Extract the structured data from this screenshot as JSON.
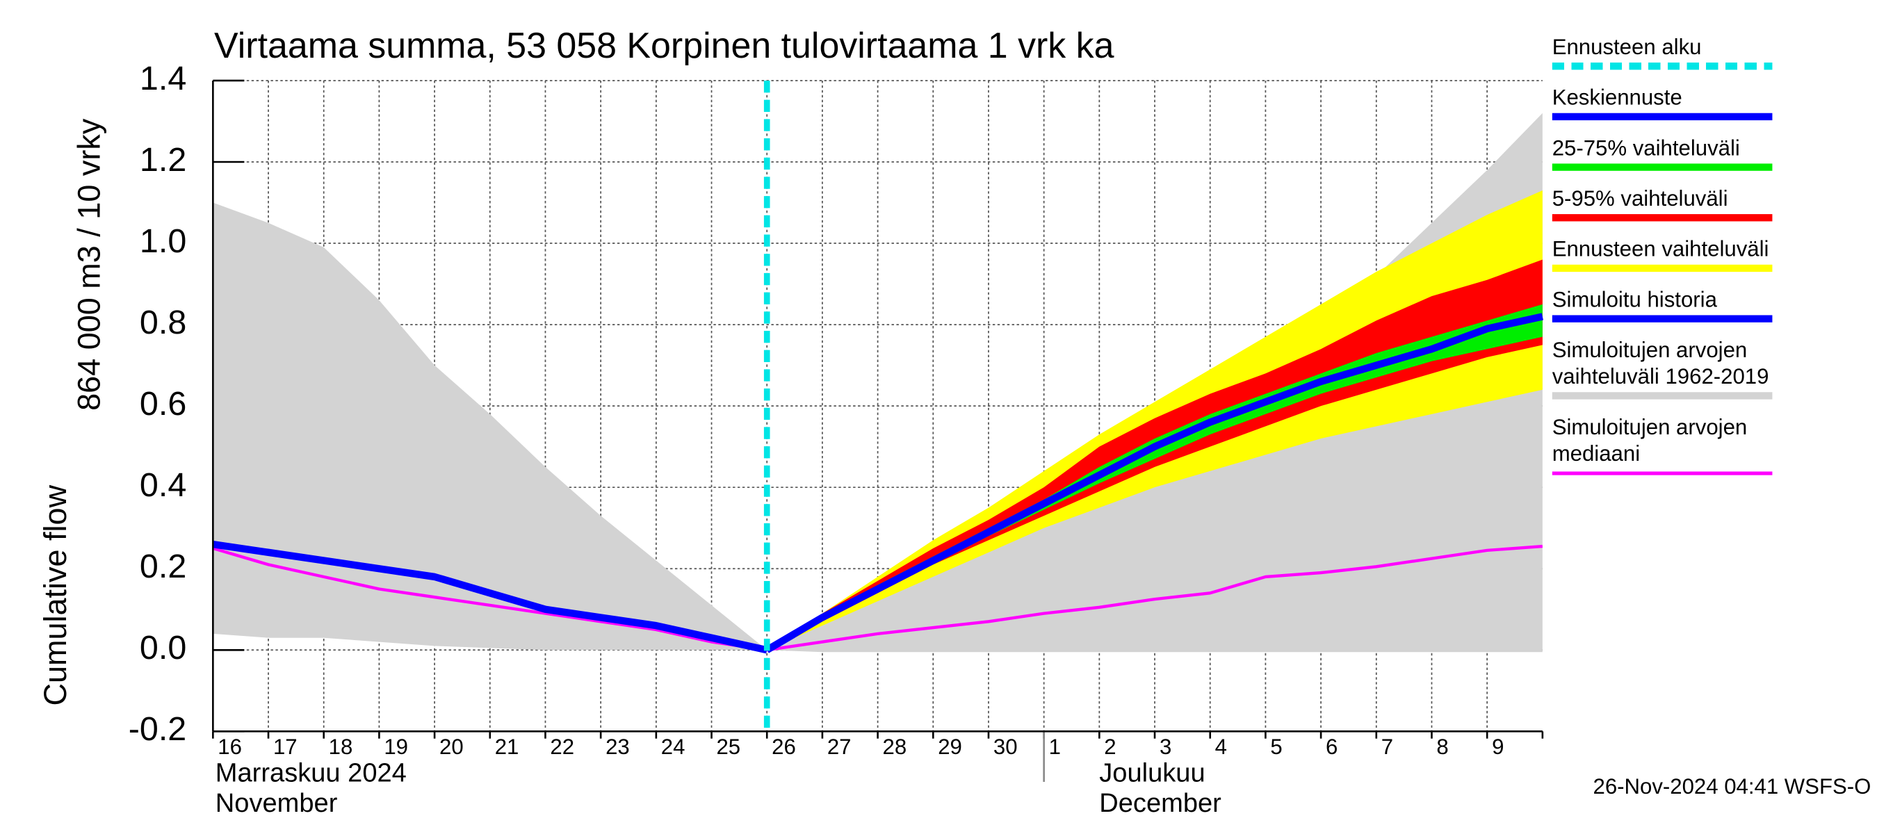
{
  "chart_data": {
    "type": "band-line",
    "title": "Virtaama summa, 53 058 Korpinen tulovirtaama 1 vrk ka",
    "y_label_lines": [
      "Cumulative flow",
      "864 000 m3 / 10 vrky"
    ],
    "categories": [
      "16",
      "17",
      "18",
      "19",
      "20",
      "21",
      "22",
      "23",
      "24",
      "25",
      "26",
      "27",
      "28",
      "29",
      "30",
      "1",
      "2",
      "3",
      "4",
      "5",
      "6",
      "7",
      "8",
      "9",
      null
    ],
    "months": [
      {
        "start": 0,
        "lines": [
          "Marraskuu 2024",
          "November"
        ]
      },
      {
        "start": 15,
        "lines": [
          "Joulukuu",
          "December"
        ]
      }
    ],
    "ylim": [
      -0.2,
      1.4
    ],
    "yticks": [
      -0.2,
      {
        "value": 0,
        "label": "0.0"
      },
      0.2,
      0.4,
      0.6,
      0.8,
      {
        "value": 1,
        "label": "1.0"
      },
      1.2,
      1.4
    ],
    "grid": true,
    "forecast_start": {
      "name": "Ennusteen alku",
      "index": 10,
      "color": "#00e5e5"
    },
    "series": [
      {
        "name": "Keskiennuste",
        "color": "#0000ff",
        "values": [
          null,
          null,
          null,
          null,
          null,
          null,
          null,
          null,
          null,
          null,
          0,
          0.08,
          0.15,
          0.22,
          0.29,
          0.36,
          0.43,
          0.5,
          0.56,
          0.61,
          0.66,
          0.7,
          0.74,
          0.79,
          0.82
        ]
      },
      {
        "name": "25-75% vaihteluväli",
        "color": "#00ee00",
        "low": [
          null,
          null,
          null,
          null,
          null,
          null,
          null,
          null,
          null,
          null,
          0,
          0.075,
          0.145,
          0.21,
          0.28,
          0.345,
          0.41,
          0.47,
          0.53,
          0.58,
          0.63,
          0.67,
          0.71,
          0.74,
          0.77
        ],
        "high": [
          null,
          null,
          null,
          null,
          null,
          null,
          null,
          null,
          null,
          null,
          0,
          0.085,
          0.16,
          0.23,
          0.3,
          0.37,
          0.45,
          0.52,
          0.58,
          0.63,
          0.68,
          0.73,
          0.77,
          0.81,
          0.85
        ]
      },
      {
        "name": "5-95% vaihteluväli",
        "color": "#ff0000",
        "low": [
          null,
          null,
          null,
          null,
          null,
          null,
          null,
          null,
          null,
          null,
          0,
          0.07,
          0.14,
          0.21,
          0.27,
          0.33,
          0.39,
          0.45,
          0.5,
          0.55,
          0.6,
          0.64,
          0.68,
          0.72,
          0.75
        ],
        "high": [
          null,
          null,
          null,
          null,
          null,
          null,
          null,
          null,
          null,
          null,
          0,
          0.09,
          0.17,
          0.25,
          0.32,
          0.4,
          0.5,
          0.57,
          0.63,
          0.68,
          0.74,
          0.81,
          0.87,
          0.91,
          0.96
        ]
      },
      {
        "name": "Ennusteen vaihteluväli",
        "color": "#ffff00",
        "low": [
          null,
          null,
          null,
          null,
          null,
          null,
          null,
          null,
          null,
          null,
          0,
          0.06,
          0.12,
          0.18,
          0.24,
          0.3,
          0.35,
          0.4,
          0.44,
          0.48,
          0.52,
          0.55,
          0.58,
          0.61,
          0.64
        ],
        "high": [
          null,
          null,
          null,
          null,
          null,
          null,
          null,
          null,
          null,
          null,
          0,
          0.09,
          0.18,
          0.27,
          0.35,
          0.44,
          0.53,
          0.61,
          0.69,
          0.77,
          0.85,
          0.93,
          1.0,
          1.07,
          1.13
        ]
      },
      {
        "name": "Simuloitu historia",
        "color": "#0000ff",
        "values": [
          0.26,
          0.24,
          0.22,
          0.2,
          0.18,
          0.14,
          0.1,
          0.08,
          0.06,
          0.03,
          0,
          null,
          null,
          null,
          null,
          null,
          null,
          null,
          null,
          null,
          null,
          null,
          null,
          null,
          null
        ]
      },
      {
        "name": "Simuloitujen arvojen vaihteluväli 1962-2019",
        "color": "#d3d3d3",
        "low": [
          0.04,
          0.03,
          0.03,
          0.02,
          0.01,
          0.005,
          0,
          0,
          0,
          0,
          0,
          -0.005,
          -0.005,
          -0.005,
          -0.005,
          -0.005,
          -0.005,
          -0.005,
          -0.005,
          -0.005,
          -0.005,
          -0.005,
          -0.005,
          -0.005,
          -0.005
        ],
        "high": [
          1.1,
          1.05,
          0.99,
          0.86,
          0.7,
          0.58,
          0.45,
          0.33,
          0.22,
          0.11,
          0,
          0.07,
          0.15,
          0.23,
          0.31,
          0.39,
          0.47,
          0.55,
          0.62,
          0.72,
          0.82,
          0.92,
          1.05,
          1.18,
          1.32
        ]
      },
      {
        "name": "Simuloitujen arvojen mediaani",
        "color": "#ff00ff",
        "values": [
          0.25,
          0.21,
          0.18,
          0.15,
          0.13,
          0.11,
          0.09,
          0.07,
          0.05,
          0.02,
          0,
          0.02,
          0.04,
          0.055,
          0.07,
          0.09,
          0.105,
          0.125,
          0.14,
          0.18,
          0.19,
          0.205,
          0.225,
          0.245,
          0.255
        ]
      }
    ],
    "footer": "26-Nov-2024 04:41 WSFS-O"
  }
}
